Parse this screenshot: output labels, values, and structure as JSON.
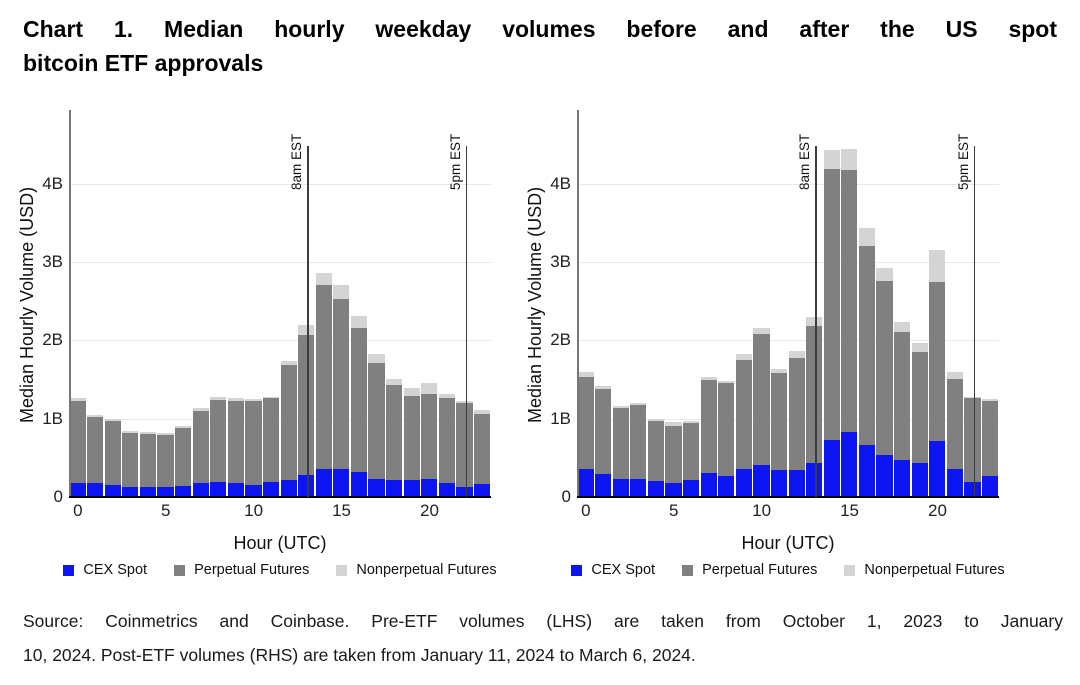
{
  "title": {
    "line1": "Chart 1. Median hourly weekday volumes before and after the US spot",
    "line2": "bitcoin ETF approvals"
  },
  "source": {
    "line1": "Source: Coinmetrics and Coinbase. Pre-ETF volumes (LHS) are taken from October 1, 2023 to January",
    "line2": "10, 2024. Post-ETF volumes (RHS) are taken from January 11, 2024 to March 6, 2024."
  },
  "colors": {
    "cex_spot": "#0d15f2",
    "perpetual": "#808080",
    "nonperpetual": "#d4d4d4",
    "gridline": "#e8e8e8",
    "axis": "#777777",
    "annotation_line": "#3c3c3c"
  },
  "chart_data": [
    {
      "id": "pre-etf",
      "type": "bar",
      "stacked": true,
      "title": "Pre-ETF volumes (LHS)",
      "categories": [
        0,
        1,
        2,
        3,
        4,
        5,
        6,
        7,
        8,
        9,
        10,
        11,
        12,
        13,
        14,
        15,
        16,
        17,
        18,
        19,
        20,
        21,
        22,
        23
      ],
      "xlabel": "Hour (UTC)",
      "ylabel": "Median Hourly Volume (USD)",
      "ylim": [
        0,
        4.92
      ],
      "yticks": [
        {
          "value": 0,
          "label": "0"
        },
        {
          "value": 1,
          "label": "1B"
        },
        {
          "value": 2,
          "label": "2B"
        },
        {
          "value": 3,
          "label": "3B"
        },
        {
          "value": 4,
          "label": "4B"
        }
      ],
      "xticks": [
        0,
        5,
        10,
        15,
        20
      ],
      "grid": true,
      "legend_position": "bottom",
      "series": [
        {
          "name": "CEX Spot",
          "color_key": "cex_spot",
          "values": [
            0.17,
            0.16,
            0.14,
            0.12,
            0.12,
            0.12,
            0.13,
            0.16,
            0.18,
            0.16,
            0.14,
            0.18,
            0.2,
            0.27,
            0.35,
            0.35,
            0.31,
            0.22,
            0.21,
            0.21,
            0.22,
            0.16,
            0.12,
            0.15
          ]
        },
        {
          "name": "Perpetual Futures",
          "color_key": "perpetual",
          "values": [
            1.04,
            0.85,
            0.82,
            0.69,
            0.67,
            0.66,
            0.74,
            0.93,
            1.05,
            1.06,
            1.07,
            1.07,
            1.47,
            1.79,
            2.35,
            2.17,
            1.84,
            1.48,
            1.21,
            1.07,
            1.08,
            1.09,
            1.07,
            0.9
          ]
        },
        {
          "name": "Nonperpetual Futures",
          "color_key": "nonperpetual",
          "values": [
            0.04,
            0.03,
            0.03,
            0.02,
            0.03,
            0.03,
            0.03,
            0.03,
            0.04,
            0.03,
            0.03,
            0.02,
            0.06,
            0.12,
            0.15,
            0.18,
            0.15,
            0.12,
            0.08,
            0.1,
            0.15,
            0.05,
            0.03,
            0.05
          ]
        }
      ],
      "annotations": [
        {
          "hour": 13,
          "label": "8am EST"
        },
        {
          "hour": 22,
          "label": "5pm EST"
        }
      ]
    },
    {
      "id": "post-etf",
      "type": "bar",
      "stacked": true,
      "title": "Post-ETF volumes (RHS)",
      "categories": [
        0,
        1,
        2,
        3,
        4,
        5,
        6,
        7,
        8,
        9,
        10,
        11,
        12,
        13,
        14,
        15,
        16,
        17,
        18,
        19,
        20,
        21,
        22,
        23
      ],
      "xlabel": "Hour (UTC)",
      "ylabel": "Median Hourly Volume (USD)",
      "ylim": [
        0,
        4.92
      ],
      "yticks": [
        {
          "value": 0,
          "label": "0"
        },
        {
          "value": 1,
          "label": "1B"
        },
        {
          "value": 2,
          "label": "2B"
        },
        {
          "value": 3,
          "label": "3B"
        },
        {
          "value": 4,
          "label": "4B"
        }
      ],
      "xticks": [
        0,
        5,
        10,
        15,
        20
      ],
      "grid": true,
      "legend_position": "bottom",
      "series": [
        {
          "name": "CEX Spot",
          "color_key": "cex_spot",
          "values": [
            0.34,
            0.28,
            0.22,
            0.22,
            0.19,
            0.17,
            0.2,
            0.29,
            0.26,
            0.34,
            0.4,
            0.33,
            0.33,
            0.42,
            0.72,
            0.82,
            0.65,
            0.52,
            0.46,
            0.42,
            0.7,
            0.34,
            0.18,
            0.25
          ]
        },
        {
          "name": "Perpetual Futures",
          "color_key": "perpetual",
          "values": [
            1.18,
            1.09,
            0.9,
            0.94,
            0.77,
            0.73,
            0.73,
            1.19,
            1.18,
            1.4,
            1.67,
            1.24,
            1.44,
            1.75,
            3.46,
            3.35,
            2.54,
            2.23,
            1.64,
            1.42,
            2.03,
            1.16,
            1.07,
            0.96
          ]
        },
        {
          "name": "Nonperpetual Futures",
          "color_key": "nonperpetual",
          "values": [
            0.06,
            0.04,
            0.03,
            0.03,
            0.03,
            0.05,
            0.03,
            0.04,
            0.03,
            0.07,
            0.08,
            0.05,
            0.08,
            0.12,
            0.24,
            0.26,
            0.23,
            0.16,
            0.13,
            0.12,
            0.42,
            0.08,
            0.02,
            0.03
          ]
        }
      ],
      "annotations": [
        {
          "hour": 13,
          "label": "8am EST"
        },
        {
          "hour": 22,
          "label": "5pm EST"
        }
      ]
    }
  ]
}
